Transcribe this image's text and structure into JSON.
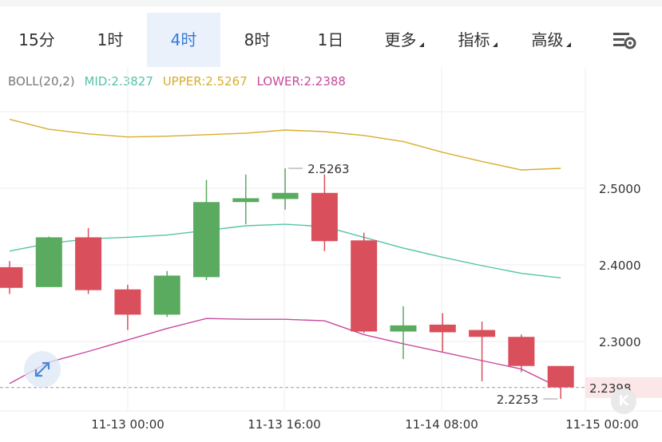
{
  "toolbar": {
    "tabs": [
      {
        "label": "15分"
      },
      {
        "label": "1时"
      },
      {
        "label": "4时"
      },
      {
        "label": "8时"
      },
      {
        "label": "1日"
      },
      {
        "label": "更多"
      },
      {
        "label": "指标"
      },
      {
        "label": "高级"
      }
    ],
    "active_tab": "4时"
  },
  "legend": {
    "indicator": "BOLL(20,2)",
    "mid": "MID:2.3827",
    "upper": "UPPER:2.5267",
    "lower": "LOWER:2.2388"
  },
  "colors": {
    "up": "#5aaa5f",
    "down": "#d9505c",
    "mid": "#55c3a8",
    "upper": "#d9ad2e",
    "lower": "#c74a9c",
    "active_tab": "#3a7bd5"
  },
  "chart_data": {
    "type": "candlestick",
    "y_ticks": [
      "2.5000",
      "2.4000",
      "2.3000"
    ],
    "x_ticks": [
      "11-13 00:00",
      "11-13 16:00",
      "11-14 08:00",
      "11-15 00:00"
    ],
    "ylim": [
      2.2,
      2.6
    ],
    "grid": true,
    "candles": [
      {
        "open": 2.397,
        "high": 2.405,
        "low": 2.362,
        "close": 2.37
      },
      {
        "open": 2.371,
        "high": 2.437,
        "low": 2.371,
        "close": 2.436
      },
      {
        "open": 2.436,
        "high": 2.448,
        "low": 2.362,
        "close": 2.367
      },
      {
        "open": 2.368,
        "high": 2.374,
        "low": 2.315,
        "close": 2.335
      },
      {
        "open": 2.335,
        "high": 2.392,
        "low": 2.332,
        "close": 2.386
      },
      {
        "open": 2.384,
        "high": 2.511,
        "low": 2.38,
        "close": 2.482
      },
      {
        "open": 2.482,
        "high": 2.518,
        "low": 2.453,
        "close": 2.487
      },
      {
        "open": 2.486,
        "high": 2.526,
        "low": 2.472,
        "close": 2.494
      },
      {
        "open": 2.494,
        "high": 2.518,
        "low": 2.418,
        "close": 2.431
      },
      {
        "open": 2.432,
        "high": 2.442,
        "low": 2.311,
        "close": 2.313
      },
      {
        "open": 2.313,
        "high": 2.346,
        "low": 2.277,
        "close": 2.321
      },
      {
        "open": 2.322,
        "high": 2.337,
        "low": 2.287,
        "close": 2.312
      },
      {
        "open": 2.315,
        "high": 2.326,
        "low": 2.248,
        "close": 2.306
      },
      {
        "open": 2.306,
        "high": 2.309,
        "low": 2.26,
        "close": 2.268
      },
      {
        "open": 2.268,
        "high": 2.268,
        "low": 2.225,
        "close": 2.24
      }
    ],
    "boll_upper": [
      2.59,
      2.577,
      2.571,
      2.567,
      2.568,
      2.57,
      2.572,
      2.576,
      2.574,
      2.569,
      2.561,
      2.547,
      2.535,
      2.524,
      2.526
    ],
    "boll_mid": [
      2.418,
      2.428,
      2.434,
      2.436,
      2.439,
      2.445,
      2.451,
      2.453,
      2.45,
      2.436,
      2.422,
      2.41,
      2.399,
      2.389,
      2.383
    ],
    "boll_lower": [
      2.245,
      2.273,
      2.287,
      2.302,
      2.317,
      2.33,
      2.329,
      2.329,
      2.327,
      2.309,
      2.297,
      2.286,
      2.275,
      2.264,
      2.239
    ],
    "annotations": {
      "high_label": "2.5263",
      "low_label": "2.2253",
      "last_price": "2.2398"
    }
  }
}
